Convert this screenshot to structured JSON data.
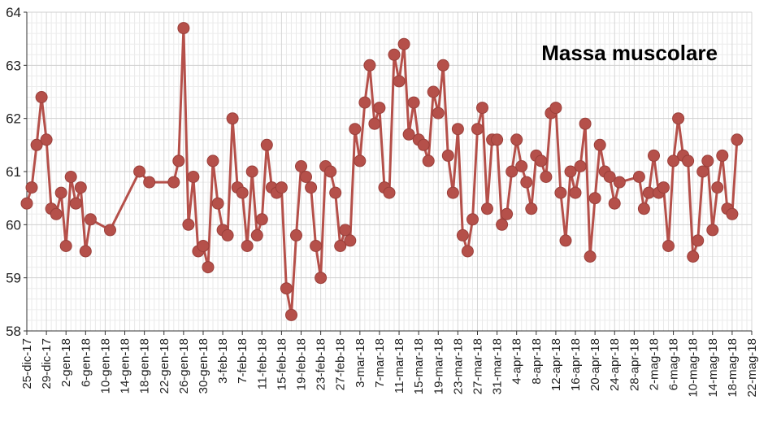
{
  "chart_data": {
    "type": "line",
    "title": "Massa muscolare",
    "xlabel": "",
    "ylabel": "",
    "ylim": [
      58,
      64
    ],
    "yticks": [
      58,
      59,
      60,
      61,
      62,
      63,
      64
    ],
    "grid": true,
    "xlim": [
      "2017-12-25",
      "2018-05-22"
    ],
    "xtick_labels": [
      "25-dic-17",
      "29-dic-17",
      "2-gen-18",
      "6-gen-18",
      "10-gen-18",
      "14-gen-18",
      "18-gen-18",
      "22-gen-18",
      "26-gen-18",
      "30-gen-18",
      "3-feb-18",
      "7-feb-18",
      "11-feb-18",
      "15-feb-18",
      "19-feb-18",
      "23-feb-18",
      "27-feb-18",
      "3-mar-18",
      "7-mar-18",
      "11-mar-18",
      "15-mar-18",
      "19-mar-18",
      "23-mar-18",
      "27-mar-18",
      "31-mar-18",
      "4-apr-18",
      "8-apr-18",
      "12-apr-18",
      "16-apr-18",
      "20-apr-18",
      "24-apr-18",
      "28-apr-18",
      "2-mag-18",
      "6-mag-18",
      "10-mag-18",
      "14-mag-18",
      "18-mag-18",
      "22-mag-18"
    ],
    "series_color": "#b5504a",
    "series": [
      {
        "points": [
          [
            "2017-12-25",
            60.4
          ],
          [
            "2017-12-26",
            60.7
          ],
          [
            "2017-12-27",
            61.5
          ],
          [
            "2017-12-28",
            62.4
          ],
          [
            "2017-12-29",
            61.6
          ],
          [
            "2017-12-30",
            60.3
          ],
          [
            "2017-12-31",
            60.2
          ],
          [
            "2018-01-01",
            60.6
          ],
          [
            "2018-01-02",
            59.6
          ],
          [
            "2018-01-03",
            60.9
          ],
          [
            "2018-01-04",
            60.4
          ],
          [
            "2018-01-05",
            60.7
          ],
          [
            "2018-01-06",
            59.5
          ],
          [
            "2018-01-07",
            60.1
          ],
          [
            "2018-01-11",
            59.9
          ],
          [
            "2018-01-17",
            61.0
          ],
          [
            "2018-01-19",
            60.8
          ],
          [
            "2018-01-24",
            60.8
          ],
          [
            "2018-01-25",
            61.2
          ],
          [
            "2018-01-26",
            63.7
          ],
          [
            "2018-01-27",
            60.0
          ],
          [
            "2018-01-28",
            60.9
          ],
          [
            "2018-01-29",
            59.5
          ],
          [
            "2018-01-30",
            59.6
          ],
          [
            "2018-01-31",
            59.2
          ],
          [
            "2018-02-01",
            61.2
          ],
          [
            "2018-02-02",
            60.4
          ],
          [
            "2018-02-03",
            59.9
          ],
          [
            "2018-02-04",
            59.8
          ],
          [
            "2018-02-05",
            62.0
          ],
          [
            "2018-02-06",
            60.7
          ],
          [
            "2018-02-07",
            60.6
          ],
          [
            "2018-02-08",
            59.6
          ],
          [
            "2018-02-09",
            61.0
          ],
          [
            "2018-02-10",
            59.8
          ],
          [
            "2018-02-11",
            60.1
          ],
          [
            "2018-02-12",
            61.5
          ],
          [
            "2018-02-13",
            60.7
          ],
          [
            "2018-02-14",
            60.6
          ],
          [
            "2018-02-15",
            60.7
          ],
          [
            "2018-02-16",
            58.8
          ],
          [
            "2018-02-17",
            58.3
          ],
          [
            "2018-02-18",
            59.8
          ],
          [
            "2018-02-19",
            61.1
          ],
          [
            "2018-02-20",
            60.9
          ],
          [
            "2018-02-21",
            60.7
          ],
          [
            "2018-02-22",
            59.6
          ],
          [
            "2018-02-23",
            59.0
          ],
          [
            "2018-02-24",
            61.1
          ],
          [
            "2018-02-25",
            61.0
          ],
          [
            "2018-02-26",
            60.6
          ],
          [
            "2018-02-27",
            59.6
          ],
          [
            "2018-02-28",
            59.9
          ],
          [
            "2018-03-01",
            59.7
          ],
          [
            "2018-03-02",
            61.8
          ],
          [
            "2018-03-03",
            61.2
          ],
          [
            "2018-03-04",
            62.3
          ],
          [
            "2018-03-05",
            63.0
          ],
          [
            "2018-03-06",
            61.9
          ],
          [
            "2018-03-07",
            62.2
          ],
          [
            "2018-03-08",
            60.7
          ],
          [
            "2018-03-09",
            60.6
          ],
          [
            "2018-03-10",
            63.2
          ],
          [
            "2018-03-11",
            62.7
          ],
          [
            "2018-03-12",
            63.4
          ],
          [
            "2018-03-13",
            61.7
          ],
          [
            "2018-03-14",
            62.3
          ],
          [
            "2018-03-15",
            61.6
          ],
          [
            "2018-03-16",
            61.5
          ],
          [
            "2018-03-17",
            61.2
          ],
          [
            "2018-03-18",
            62.5
          ],
          [
            "2018-03-19",
            62.1
          ],
          [
            "2018-03-20",
            63.0
          ],
          [
            "2018-03-21",
            61.3
          ],
          [
            "2018-03-22",
            60.6
          ],
          [
            "2018-03-23",
            61.8
          ],
          [
            "2018-03-24",
            59.8
          ],
          [
            "2018-03-25",
            59.5
          ],
          [
            "2018-03-26",
            60.1
          ],
          [
            "2018-03-27",
            61.8
          ],
          [
            "2018-03-28",
            62.2
          ],
          [
            "2018-03-29",
            60.3
          ],
          [
            "2018-03-30",
            61.6
          ],
          [
            "2018-03-31",
            61.6
          ],
          [
            "2018-04-01",
            60.0
          ],
          [
            "2018-04-02",
            60.2
          ],
          [
            "2018-04-03",
            61.0
          ],
          [
            "2018-04-04",
            61.6
          ],
          [
            "2018-04-05",
            61.1
          ],
          [
            "2018-04-06",
            60.8
          ],
          [
            "2018-04-07",
            60.3
          ],
          [
            "2018-04-08",
            61.3
          ],
          [
            "2018-04-09",
            61.2
          ],
          [
            "2018-04-10",
            60.9
          ],
          [
            "2018-04-11",
            62.1
          ],
          [
            "2018-04-12",
            62.2
          ],
          [
            "2018-04-13",
            60.6
          ],
          [
            "2018-04-14",
            59.7
          ],
          [
            "2018-04-15",
            61.0
          ],
          [
            "2018-04-16",
            60.6
          ],
          [
            "2018-04-17",
            61.1
          ],
          [
            "2018-04-18",
            61.9
          ],
          [
            "2018-04-19",
            59.4
          ],
          [
            "2018-04-20",
            60.5
          ],
          [
            "2018-04-21",
            61.5
          ],
          [
            "2018-04-22",
            61.0
          ],
          [
            "2018-04-23",
            60.9
          ],
          [
            "2018-04-24",
            60.4
          ],
          [
            "2018-04-25",
            60.8
          ],
          [
            "2018-04-29",
            60.9
          ],
          [
            "2018-04-30",
            60.3
          ],
          [
            "2018-05-01",
            60.6
          ],
          [
            "2018-05-02",
            61.3
          ],
          [
            "2018-05-03",
            60.6
          ],
          [
            "2018-05-04",
            60.7
          ],
          [
            "2018-05-05",
            59.6
          ],
          [
            "2018-05-06",
            61.2
          ],
          [
            "2018-05-07",
            62.0
          ],
          [
            "2018-05-08",
            61.3
          ],
          [
            "2018-05-09",
            61.2
          ],
          [
            "2018-05-10",
            59.4
          ],
          [
            "2018-05-11",
            59.7
          ],
          [
            "2018-05-12",
            61.0
          ],
          [
            "2018-05-13",
            61.2
          ],
          [
            "2018-05-14",
            59.9
          ],
          [
            "2018-05-15",
            60.7
          ],
          [
            "2018-05-16",
            61.3
          ],
          [
            "2018-05-17",
            60.3
          ],
          [
            "2018-05-18",
            60.2
          ],
          [
            "2018-05-19",
            61.6
          ]
        ]
      }
    ]
  }
}
